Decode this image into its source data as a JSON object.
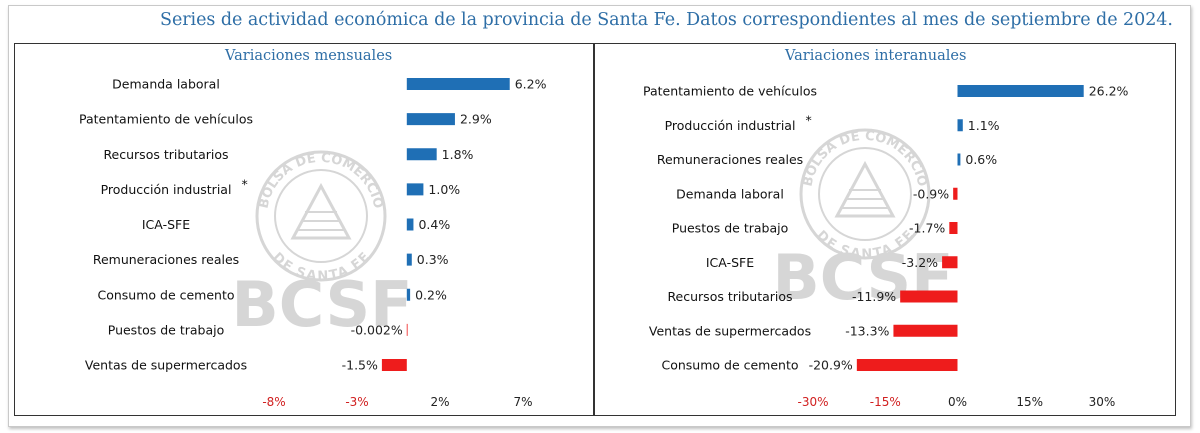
{
  "header": {
    "title": "Series de actividad económica de la provincia de Santa Fe. Datos correspondientes al mes de septiembre de 2024."
  },
  "watermark": {
    "logo_text": "BCSF",
    "seal_top": "BOLSA DE COMERCIO",
    "seal_bottom": "DE SANTA FE"
  },
  "colors": {
    "positive": "#1f6fb5",
    "negative": "#ee1c1c",
    "negative_tick": "#d12020",
    "title": "#2e6ea6"
  },
  "chart_data": [
    {
      "type": "bar",
      "orientation": "horizontal",
      "title": "Variaciones mensuales",
      "categories": [
        "Demanda laboral",
        "Patentamiento de vehículos",
        "Recursos tributarios",
        "Producción industrial",
        "ICA-SFE",
        "Remuneraciones reales",
        "Consumo de cemento",
        "Puestos de trabajo",
        "Ventas de supermercados"
      ],
      "category_marks": [
        "",
        "",
        "",
        "*",
        "",
        "",
        "",
        "",
        ""
      ],
      "values": [
        6.2,
        2.9,
        1.8,
        1.0,
        0.4,
        0.3,
        0.2,
        -0.002,
        -1.5
      ],
      "value_labels": [
        "6.2%",
        "2.9%",
        "1.8%",
        "1.0%",
        "0.4%",
        "0.3%",
        "0.2%",
        "-0.002%",
        "-1.5%"
      ],
      "xlim": [
        -8,
        7
      ],
      "ticks": [
        -8,
        -3,
        2,
        7
      ],
      "tick_labels": [
        "-8%",
        "-3%",
        "2%",
        "7%"
      ],
      "grid": false
    },
    {
      "type": "bar",
      "orientation": "horizontal",
      "title": "Variaciones interanuales",
      "categories": [
        "Patentamiento de vehículos",
        "Producción industrial",
        "Remuneraciones reales",
        "Demanda laboral",
        "Puestos de trabajo",
        "ICA-SFE",
        "Recursos tributarios",
        "Ventas de supermercados",
        "Consumo de cemento"
      ],
      "category_marks": [
        "",
        "*",
        "",
        "",
        "",
        "",
        "",
        "",
        ""
      ],
      "values": [
        26.2,
        1.1,
        0.6,
        -0.9,
        -1.7,
        -3.2,
        -11.9,
        -13.3,
        -20.9
      ],
      "value_labels": [
        "26.2%",
        "1.1%",
        "0.6%",
        "-0.9%",
        "-1.7%",
        "-3.2%",
        "-11.9%",
        "-13.3%",
        "-20.9%"
      ],
      "xlim": [
        -30,
        30
      ],
      "ticks": [
        -30,
        -15,
        0,
        15,
        30
      ],
      "tick_labels": [
        "-30%",
        "-15%",
        "0%",
        "15%",
        "30%"
      ],
      "grid": false
    }
  ]
}
